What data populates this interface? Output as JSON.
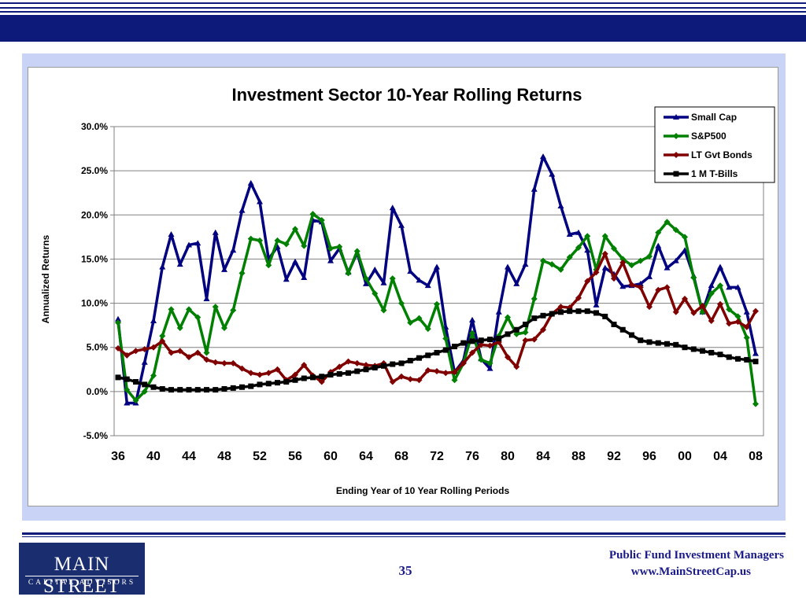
{
  "slide": {
    "page_number": "35",
    "company_name": "Public Fund Investment Managers",
    "website": "www.MainStreetCap.us",
    "logo": {
      "name": "MAIN STREET",
      "tagline": "CAPITAL ADVISORS"
    },
    "colors": {
      "brand_navy": "#0d1a7a",
      "panel": "#c9d3f5"
    }
  },
  "chart_data": {
    "type": "line",
    "title": "Investment Sector 10-Year Rolling Returns",
    "xlabel": "Ending Year of 10 Year Rolling Periods",
    "ylabel": "Annualized Returns",
    "ylim": [
      -5,
      30
    ],
    "yticks": [
      "-5.0%",
      "0.0%",
      "5.0%",
      "10.0%",
      "15.0%",
      "20.0%",
      "25.0%",
      "30.0%"
    ],
    "xticks": [
      "36",
      "40",
      "44",
      "48",
      "52",
      "56",
      "60",
      "64",
      "68",
      "72",
      "76",
      "80",
      "84",
      "88",
      "92",
      "96",
      "00",
      "04",
      "08"
    ],
    "x_start": 1936,
    "x_end": 2008,
    "legend_position": "top-right",
    "grid": "horizontal",
    "series": [
      {
        "name": "Small Cap",
        "color": "#000080",
        "marker": "triangle",
        "values": [
          8.2,
          -1.3,
          -1.3,
          3.3,
          8.0,
          14.1,
          17.8,
          14.4,
          16.6,
          16.8,
          10.5,
          18.0,
          13.8,
          16.0,
          20.5,
          23.6,
          21.5,
          15.0,
          16.4,
          12.7,
          14.7,
          12.9,
          19.4,
          19.2,
          14.8,
          16.2,
          13.5,
          15.7,
          12.2,
          13.8,
          12.3,
          20.8,
          18.8,
          13.6,
          12.6,
          12.0,
          14.1,
          7.3,
          2.2,
          3.5,
          8.1,
          3.7,
          2.6,
          9.0,
          14.1,
          12.2,
          14.4,
          22.9,
          26.6,
          24.6,
          21.0,
          17.8,
          18.0,
          16.0,
          9.8,
          14.0,
          13.3,
          11.9,
          12.0,
          12.2,
          13.0,
          16.5,
          14.0,
          14.8,
          16.0,
          13.1,
          9.0,
          12.0,
          14.1,
          11.8,
          11.8,
          9.0,
          4.3
        ]
      },
      {
        "name": "S&P500",
        "color": "#008000",
        "marker": "diamond",
        "values": [
          7.8,
          0.2,
          -1.0,
          0.0,
          1.8,
          6.3,
          9.3,
          7.2,
          9.3,
          8.4,
          4.4,
          9.6,
          7.2,
          9.2,
          13.4,
          17.3,
          17.1,
          14.3,
          17.1,
          16.7,
          18.4,
          16.5,
          20.1,
          19.4,
          16.2,
          16.4,
          13.4,
          15.9,
          12.8,
          11.1,
          9.2,
          12.8,
          10.0,
          7.8,
          8.3,
          7.1,
          9.9,
          6.0,
          1.3,
          3.2,
          6.6,
          3.6,
          3.2,
          6.3,
          8.4,
          6.5,
          6.7,
          10.5,
          14.8,
          14.4,
          13.8,
          15.2,
          16.3,
          17.6,
          13.8,
          17.6,
          16.2,
          15.0,
          14.3,
          14.8,
          15.3,
          18.0,
          19.2,
          18.3,
          17.5,
          12.9,
          9.0,
          11.1,
          12.0,
          9.3,
          8.5,
          6.1,
          -1.4
        ]
      },
      {
        "name": "LT Gvt Bonds",
        "color": "#800000",
        "marker": "diamond",
        "values": [
          4.9,
          4.1,
          4.6,
          4.8,
          5.0,
          5.7,
          4.4,
          4.6,
          3.9,
          4.4,
          3.6,
          3.3,
          3.2,
          3.2,
          2.6,
          2.1,
          1.9,
          2.1,
          2.5,
          1.3,
          1.9,
          3.0,
          1.8,
          1.1,
          2.2,
          2.8,
          3.4,
          3.2,
          3.0,
          2.9,
          3.2,
          1.1,
          1.7,
          1.4,
          1.3,
          2.4,
          2.3,
          2.1,
          2.2,
          3.2,
          4.4,
          5.3,
          5.2,
          5.6,
          3.9,
          2.8,
          5.8,
          5.9,
          7.0,
          8.8,
          9.6,
          9.5,
          10.6,
          12.5,
          13.5,
          15.6,
          12.8,
          14.6,
          12.1,
          11.8,
          9.6,
          11.5,
          11.8,
          9.0,
          10.5,
          8.9,
          9.7,
          8.0,
          9.9,
          7.7,
          7.9,
          7.3,
          9.1
        ]
      },
      {
        "name": "1 M T-Bills",
        "color": "#000000",
        "marker": "square",
        "values": [
          1.6,
          1.4,
          1.1,
          0.8,
          0.5,
          0.3,
          0.2,
          0.2,
          0.2,
          0.2,
          0.2,
          0.2,
          0.3,
          0.4,
          0.5,
          0.6,
          0.8,
          0.9,
          1.0,
          1.1,
          1.3,
          1.5,
          1.6,
          1.7,
          1.9,
          2.0,
          2.1,
          2.3,
          2.5,
          2.7,
          2.9,
          3.1,
          3.2,
          3.5,
          3.8,
          4.1,
          4.4,
          4.7,
          5.1,
          5.5,
          5.7,
          5.8,
          5.9,
          6.0,
          6.5,
          7.0,
          7.6,
          8.3,
          8.6,
          8.8,
          9.0,
          9.1,
          9.1,
          9.1,
          8.9,
          8.5,
          7.6,
          7.0,
          6.4,
          5.8,
          5.6,
          5.5,
          5.4,
          5.3,
          5.0,
          4.8,
          4.6,
          4.4,
          4.2,
          3.9,
          3.7,
          3.6,
          3.4
        ]
      }
    ]
  }
}
